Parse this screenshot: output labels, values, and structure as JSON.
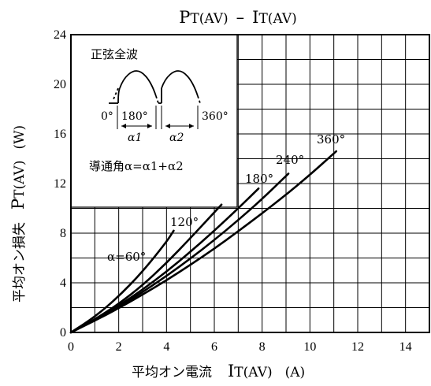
{
  "chart_data": {
    "type": "line",
    "title": "PT(AV) – IT(AV)",
    "title_main": "P",
    "title_main_sub": "T(AV)",
    "title_sep": "–",
    "title_second": "I",
    "title_second_sub": "T(AV)",
    "xlabel_jp": "平均オン電流",
    "xlabel_sym": "I",
    "xlabel_sub": "T(AV)",
    "xlabel_unit": "(A)",
    "ylabel_jp": "平均オン損失",
    "ylabel_sym": "P",
    "ylabel_sub": "T(AV)",
    "ylabel_unit": "(W)",
    "xlim": [
      0,
      15
    ],
    "ylim": [
      0,
      24
    ],
    "x_ticks": [
      0,
      2,
      4,
      6,
      8,
      10,
      12,
      14
    ],
    "y_ticks": [
      0,
      4,
      8,
      12,
      16,
      20,
      24
    ],
    "grid": true,
    "series": [
      {
        "name": "α=60°",
        "x": [
          0,
          1,
          2,
          3,
          4,
          4.3
        ],
        "y": [
          0,
          1.25,
          2.9,
          4.9,
          7.3,
          8.2
        ]
      },
      {
        "name": "120°",
        "x": [
          0,
          1,
          2,
          3,
          4,
          5,
          6.3
        ],
        "y": [
          0,
          1.05,
          2.3,
          3.8,
          5.6,
          7.6,
          10.3
        ]
      },
      {
        "name": "180°",
        "x": [
          0,
          1,
          2,
          3,
          4,
          5,
          6,
          7,
          7.85
        ],
        "y": [
          0,
          1.0,
          2.15,
          3.45,
          4.9,
          6.5,
          8.2,
          10.0,
          11.6
        ]
      },
      {
        "name": "240°",
        "x": [
          0,
          1,
          2,
          3,
          4,
          5,
          6,
          7,
          8,
          9.1
        ],
        "y": [
          0,
          0.98,
          2.05,
          3.25,
          4.55,
          5.95,
          7.45,
          9.05,
          10.75,
          12.8
        ]
      },
      {
        "name": "360°",
        "x": [
          0,
          1,
          2,
          3,
          4,
          5,
          6,
          7,
          8,
          9,
          10,
          11.1
        ],
        "y": [
          0,
          0.95,
          1.95,
          3.05,
          4.2,
          5.45,
          6.75,
          8.15,
          9.6,
          11.1,
          12.7,
          14.6
        ]
      }
    ],
    "curve_labels": [
      "α=60°",
      "120°",
      "180°",
      "240°",
      "360°"
    ],
    "inset": {
      "title": "正弦全波",
      "label_0": "0°",
      "label_180": "180°",
      "label_360": "360°",
      "alpha1": "α1",
      "alpha2": "α2",
      "conduction": "導通角α=α1+α2"
    }
  }
}
